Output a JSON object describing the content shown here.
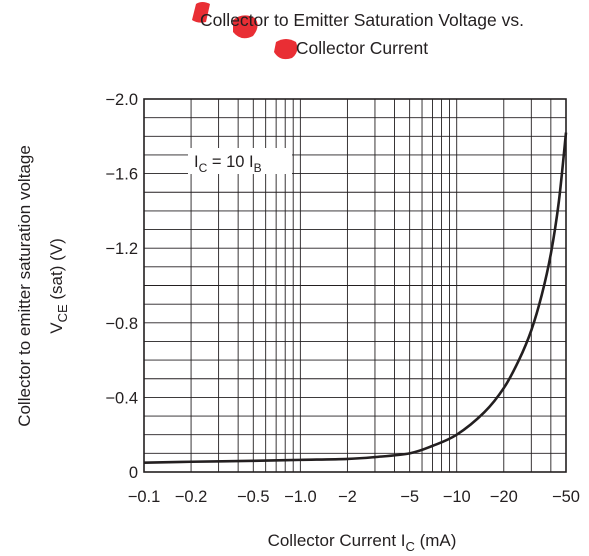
{
  "chart_data": {
    "type": "line",
    "title": [
      "Collector to Emitter Saturation Voltage vs.",
      "Collector Current"
    ],
    "xlabel": {
      "main": "Collector Current  I",
      "sub": "C",
      "tail": "  (mA)"
    },
    "ylabel": {
      "line1": "Collector to emitter saturation voltage",
      "main": "V",
      "sub": "CE",
      "tail": " (sat)  (V)"
    },
    "x_scale": "log",
    "xlim": [
      -0.1,
      -50
    ],
    "ylim": [
      0,
      -2.0
    ],
    "x_ticks": [
      {
        "value": -0.1,
        "label": "−0.1"
      },
      {
        "value": -0.2,
        "label": "−0.2"
      },
      {
        "value": -0.5,
        "label": "−0.5"
      },
      {
        "value": -1.0,
        "label": "−1.0"
      },
      {
        "value": -2,
        "label": "−2"
      },
      {
        "value": -5,
        "label": "−5"
      },
      {
        "value": -10,
        "label": "−10"
      },
      {
        "value": -20,
        "label": "−20"
      },
      {
        "value": -50,
        "label": "−50"
      }
    ],
    "y_ticks": [
      {
        "value": -2.0,
        "label": "−2.0"
      },
      {
        "value": -1.6,
        "label": "−1.6"
      },
      {
        "value": -1.2,
        "label": "−1.2"
      },
      {
        "value": -0.8,
        "label": "−0.8"
      },
      {
        "value": -0.4,
        "label": "−0.4"
      },
      {
        "value": 0,
        "label": "0"
      }
    ],
    "annotation": {
      "a": "I",
      "a_sub": "C",
      "mid": " = 10 I",
      "b_sub": "B"
    },
    "grid": true,
    "series": [
      {
        "x": [
          -0.1,
          -0.2,
          -0.5,
          -1,
          -2,
          -3,
          -5,
          -7,
          -10,
          -15,
          -20,
          -25,
          -30,
          -35,
          -40,
          -45,
          -50
        ],
        "y": [
          -0.05,
          -0.055,
          -0.06,
          -0.065,
          -0.07,
          -0.08,
          -0.1,
          -0.14,
          -0.2,
          -0.32,
          -0.45,
          -0.6,
          -0.76,
          -0.95,
          -1.17,
          -1.45,
          -1.82
        ]
      }
    ],
    "colors": {
      "ink": "#231f20",
      "watermark": "#e8232a"
    }
  }
}
